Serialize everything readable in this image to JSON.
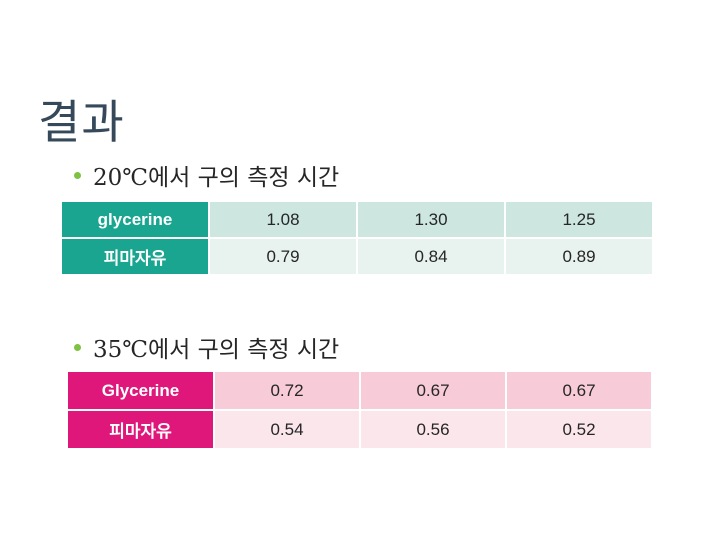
{
  "slide": {
    "title": "결과",
    "bullets": [
      {
        "temp": "20℃",
        "text": "에서 구의 측정 시간"
      },
      {
        "temp": "35℃",
        "text": "에서 구의 측정 시간"
      }
    ]
  },
  "tables": [
    {
      "header_color": "#19a58f",
      "rows": [
        {
          "label": "glycerine",
          "values": [
            "1.08",
            "1.30",
            "1.25"
          ]
        },
        {
          "label": "피마자유",
          "values": [
            "0.79",
            "0.84",
            "0.89"
          ]
        }
      ]
    },
    {
      "header_color": "#e0177a",
      "rows": [
        {
          "label": "Glycerine",
          "values": [
            "0.72",
            "0.67",
            "0.67"
          ]
        },
        {
          "label": "피마자유",
          "values": [
            "0.54",
            "0.56",
            "0.52"
          ]
        }
      ]
    }
  ],
  "colors": {
    "bullet": "#7dc242",
    "title": "#36495a"
  }
}
